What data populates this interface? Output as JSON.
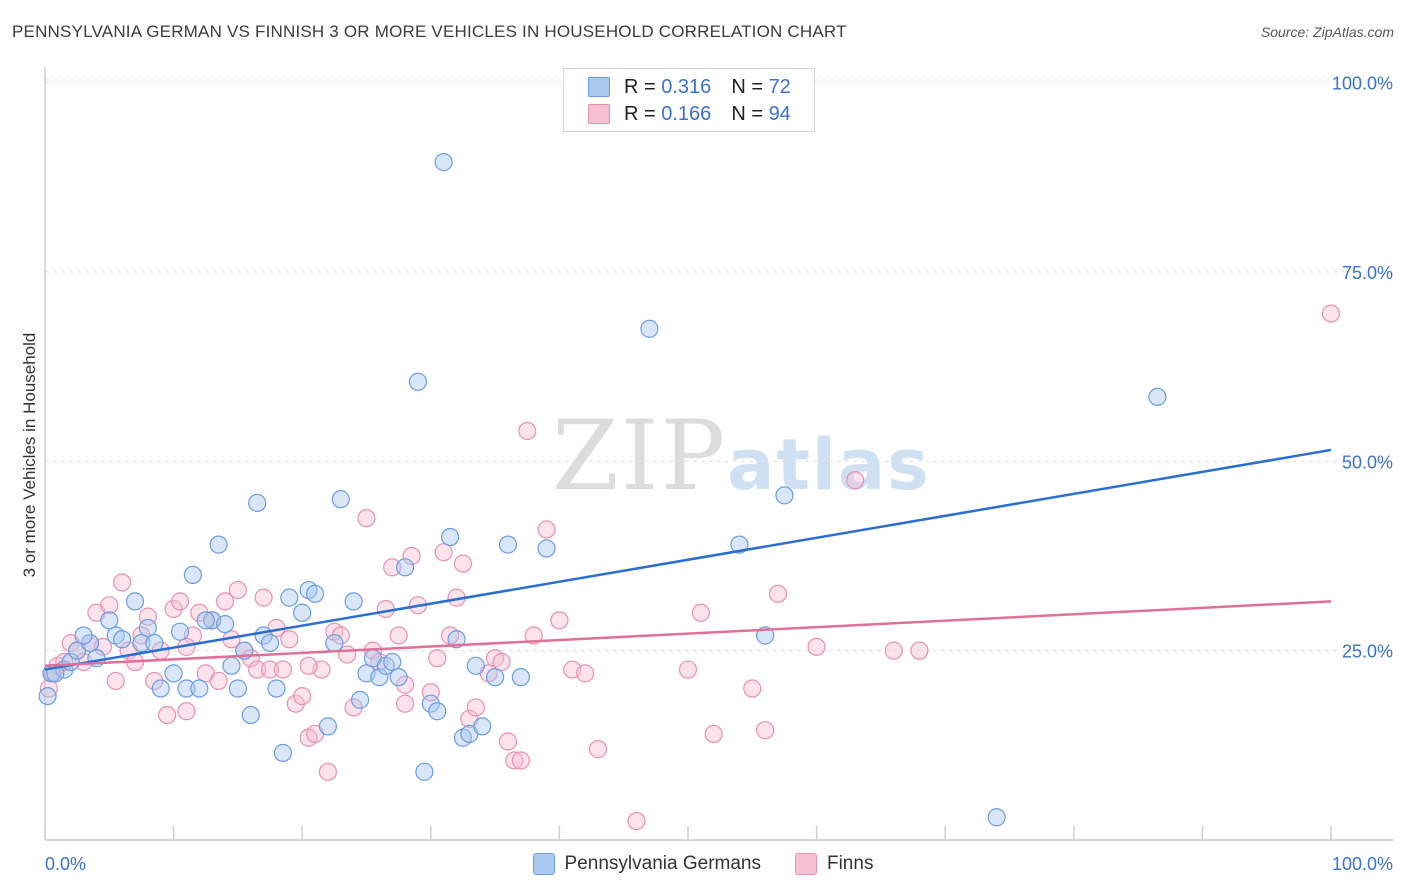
{
  "header": {
    "title": "PENNSYLVANIA GERMAN VS FINNISH 3 OR MORE VEHICLES IN HOUSEHOLD CORRELATION CHART",
    "source": "Source: ZipAtlas.com"
  },
  "watermark": {
    "zip": "ZIP",
    "atlas": "atlas"
  },
  "colors": {
    "blue_fill": "#a8c8f0",
    "blue_stroke": "#6b9de0",
    "blue_line": "#2a6fcf",
    "pink_fill": "#f6bfd2",
    "pink_stroke": "#e890b0",
    "pink_line": "#e0709a",
    "tick_label": "#3a73c9",
    "grid": "#e0e0e0"
  },
  "legend": {
    "rows": [
      {
        "r_label": "R =",
        "r_value": "0.316",
        "n_label": "N =",
        "n_value": "72"
      },
      {
        "r_label": "R =",
        "r_value": "0.166",
        "n_label": "N =",
        "n_value": "94"
      }
    ]
  },
  "chart_data": {
    "type": "scatter",
    "title": "PENNSYLVANIA GERMAN VS FINNISH 3 OR MORE VEHICLES IN HOUSEHOLD CORRELATION CHART",
    "xlabel": "",
    "ylabel": "3 or more Vehicles in Household",
    "xlim": [
      0,
      100
    ],
    "ylim": [
      0,
      101
    ],
    "x_tick_labels": [
      "0.0%",
      "100.0%"
    ],
    "y_ticks": [
      25,
      50,
      75,
      100
    ],
    "y_tick_labels": [
      "25.0%",
      "50.0%",
      "75.0%",
      "100.0%"
    ],
    "grid": true,
    "series": [
      {
        "name": "Pennsylvania Germans",
        "r": 0.316,
        "n": 72,
        "trend": {
          "x0": 0,
          "y0": 22.5,
          "x1": 100,
          "y1": 51.5
        },
        "points": [
          [
            0.2,
            19
          ],
          [
            0.5,
            22
          ],
          [
            1.5,
            22.5
          ],
          [
            2,
            23.5
          ],
          [
            2.5,
            25
          ],
          [
            3.5,
            26
          ],
          [
            4,
            24
          ],
          [
            5,
            29
          ],
          [
            5.5,
            27
          ],
          [
            6,
            26.5
          ],
          [
            7,
            31.5
          ],
          [
            7.5,
            26
          ],
          [
            8,
            28
          ],
          [
            8.5,
            26
          ],
          [
            9,
            20
          ],
          [
            10,
            22
          ],
          [
            10.5,
            27.5
          ],
          [
            11,
            20
          ],
          [
            11.5,
            35
          ],
          [
            12,
            20
          ],
          [
            13,
            29
          ],
          [
            13.5,
            39
          ],
          [
            14,
            28.5
          ],
          [
            14.5,
            23
          ],
          [
            15,
            20
          ],
          [
            15.5,
            25
          ],
          [
            16,
            16.5
          ],
          [
            16.5,
            44.5
          ],
          [
            17,
            27
          ],
          [
            17.5,
            26
          ],
          [
            18,
            20
          ],
          [
            18.5,
            11.5
          ],
          [
            19,
            32
          ],
          [
            20,
            30
          ],
          [
            20.5,
            33
          ],
          [
            21,
            32.5
          ],
          [
            22,
            15
          ],
          [
            22.5,
            26
          ],
          [
            23,
            45
          ],
          [
            24,
            31.5
          ],
          [
            24.5,
            18.5
          ],
          [
            25,
            22
          ],
          [
            25.5,
            24
          ],
          [
            26,
            21.5
          ],
          [
            26.5,
            23
          ],
          [
            27,
            23.5
          ],
          [
            28,
            36
          ],
          [
            29,
            60.5
          ],
          [
            29.5,
            9
          ],
          [
            30,
            18
          ],
          [
            30.5,
            17
          ],
          [
            31,
            89.5
          ],
          [
            31.5,
            40
          ],
          [
            32,
            26.5
          ],
          [
            32.5,
            13.5
          ],
          [
            33,
            14
          ],
          [
            34,
            15
          ],
          [
            35,
            21.5
          ],
          [
            36,
            39
          ],
          [
            37,
            21.5
          ],
          [
            39,
            38.5
          ],
          [
            47,
            67.5
          ],
          [
            54,
            39
          ],
          [
            56,
            27
          ],
          [
            57.5,
            45.5
          ],
          [
            86.5,
            58.5
          ],
          [
            74,
            3
          ],
          [
            0.8,
            22
          ],
          [
            3,
            27
          ],
          [
            12.5,
            29
          ],
          [
            27.5,
            21.5
          ],
          [
            33.5,
            23
          ]
        ]
      },
      {
        "name": "Finns",
        "r": 0.166,
        "n": 94,
        "trend": {
          "x0": 0,
          "y0": 23.0,
          "x1": 100,
          "y1": 31.5
        },
        "points": [
          [
            0.3,
            20
          ],
          [
            0.6,
            22
          ],
          [
            1,
            23
          ],
          [
            1.5,
            23.5
          ],
          [
            2,
            26
          ],
          [
            2.5,
            25
          ],
          [
            3,
            23.5
          ],
          [
            3.5,
            26
          ],
          [
            4,
            30
          ],
          [
            4.5,
            25.5
          ],
          [
            5,
            31
          ],
          [
            5.5,
            21
          ],
          [
            6,
            34
          ],
          [
            6.5,
            25
          ],
          [
            7,
            23.5
          ],
          [
            7.5,
            27
          ],
          [
            8,
            29.5
          ],
          [
            8.5,
            21
          ],
          [
            9,
            25
          ],
          [
            9.5,
            16.5
          ],
          [
            10,
            30.5
          ],
          [
            10.5,
            31.5
          ],
          [
            11,
            17
          ],
          [
            11.5,
            27
          ],
          [
            12,
            30
          ],
          [
            12.5,
            22
          ],
          [
            13,
            29
          ],
          [
            13.5,
            21
          ],
          [
            14,
            31.5
          ],
          [
            14.5,
            26.5
          ],
          [
            15,
            33
          ],
          [
            15.5,
            25
          ],
          [
            16,
            24
          ],
          [
            16.5,
            22.5
          ],
          [
            17,
            32
          ],
          [
            17.5,
            22.5
          ],
          [
            18,
            28
          ],
          [
            18.5,
            22.5
          ],
          [
            19,
            26.5
          ],
          [
            19.5,
            18
          ],
          [
            20,
            19
          ],
          [
            20.5,
            13.5
          ],
          [
            21,
            14
          ],
          [
            21.5,
            22.5
          ],
          [
            22,
            9
          ],
          [
            22.5,
            27.5
          ],
          [
            23,
            27
          ],
          [
            23.5,
            24.5
          ],
          [
            24,
            17.5
          ],
          [
            25,
            42.5
          ],
          [
            25.5,
            25
          ],
          [
            26,
            23.5
          ],
          [
            26.5,
            30.5
          ],
          [
            27,
            36
          ],
          [
            27.5,
            27
          ],
          [
            28,
            20.5
          ],
          [
            28.5,
            37.5
          ],
          [
            29,
            31
          ],
          [
            30,
            19.5
          ],
          [
            30.5,
            24
          ],
          [
            31,
            38
          ],
          [
            31.5,
            27
          ],
          [
            32,
            32
          ],
          [
            32.5,
            36.5
          ],
          [
            33,
            16
          ],
          [
            33.5,
            17.5
          ],
          [
            35,
            24
          ],
          [
            36,
            13
          ],
          [
            36.5,
            10.5
          ],
          [
            37,
            10.5
          ],
          [
            37.5,
            54
          ],
          [
            38,
            27
          ],
          [
            39,
            41
          ],
          [
            40,
            29
          ],
          [
            41,
            22.5
          ],
          [
            42,
            22
          ],
          [
            43,
            12
          ],
          [
            46,
            2.5
          ],
          [
            50,
            22.5
          ],
          [
            51,
            30
          ],
          [
            52,
            14
          ],
          [
            55,
            20
          ],
          [
            56,
            14.5
          ],
          [
            57,
            32.5
          ],
          [
            60,
            25.5
          ],
          [
            63,
            47.5
          ],
          [
            66,
            25
          ],
          [
            68,
            25
          ],
          [
            100,
            69.5
          ],
          [
            34.5,
            22
          ],
          [
            28,
            18
          ],
          [
            35.5,
            23.5
          ],
          [
            20.5,
            23
          ],
          [
            11,
            25.5
          ]
        ]
      }
    ]
  }
}
